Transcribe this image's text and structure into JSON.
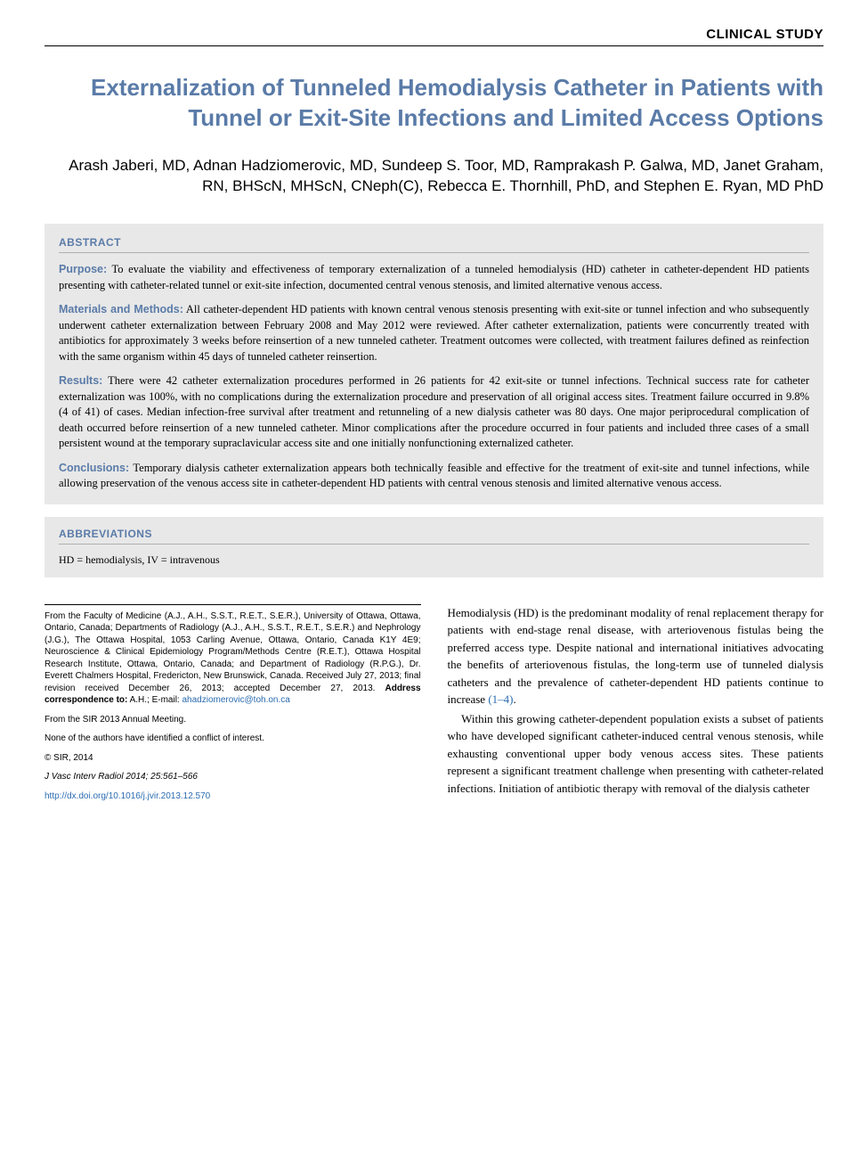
{
  "header": {
    "category": "CLINICAL STUDY"
  },
  "title": "Externalization of Tunneled Hemodialysis Catheter in Patients with Tunnel or Exit-Site Infections and Limited Access Options",
  "authors": "Arash Jaberi, MD, Adnan Hadziomerovic, MD, Sundeep S. Toor, MD, Ramprakash P. Galwa, MD, Janet Graham, RN, BHScN, MHScN, CNeph(C), Rebecca E. Thornhill, PhD, and Stephen E. Ryan, MD PhD",
  "abstract": {
    "heading": "ABSTRACT",
    "purpose_label": "Purpose:",
    "purpose_text": " To evaluate the viability and effectiveness of temporary externalization of a tunneled hemodialysis (HD) catheter in catheter-dependent HD patients presenting with catheter-related tunnel or exit-site infection, documented central venous stenosis, and limited alternative venous access.",
    "methods_label": "Materials and Methods:",
    "methods_text": " All catheter-dependent HD patients with known central venous stenosis presenting with exit-site or tunnel infection and who subsequently underwent catheter externalization between February 2008 and May 2012 were reviewed. After catheter externalization, patients were concurrently treated with antibiotics for approximately 3 weeks before reinsertion of a new tunneled catheter. Treatment outcomes were collected, with treatment failures defined as reinfection with the same organism within 45 days of tunneled catheter reinsertion.",
    "results_label": "Results:",
    "results_text": " There were 42 catheter externalization procedures performed in 26 patients for 42 exit-site or tunnel infections. Technical success rate for catheter externalization was 100%, with no complications during the externalization procedure and preservation of all original access sites. Treatment failure occurred in 9.8% (4 of 41) of cases. Median infection-free survival after treatment and retunneling of a new dialysis catheter was 80 days. One major periprocedural complication of death occurred before reinsertion of a new tunneled catheter. Minor complications after the procedure occurred in four patients and included three cases of a small persistent wound at the temporary supraclavicular access site and one initially nonfunctioning externalized catheter.",
    "conclusions_label": "Conclusions:",
    "conclusions_text": " Temporary dialysis catheter externalization appears both technically feasible and effective for the treatment of exit-site and tunnel infections, while allowing preservation of the venous access site in catheter-dependent HD patients with central venous stenosis and limited alternative venous access."
  },
  "abbreviations": {
    "heading": "ABBREVIATIONS",
    "text": "HD = hemodialysis, IV = intravenous"
  },
  "footnotes": {
    "affiliation": "From the Faculty of Medicine (A.J., A.H., S.S.T., R.E.T., S.E.R.), University of Ottawa, Ottawa, Ontario, Canada; Departments of Radiology (A.J., A.H., S.S.T., R.E.T., S.E.R.) and Nephrology (J.G.), The Ottawa Hospital, 1053 Carling Avenue, Ottawa, Ontario, Canada K1Y 4E9; Neuroscience & Clinical Epidemiology Program/Methods Centre (R.E.T.), Ottawa Hospital Research Institute, Ottawa, Ontario, Canada; and Department of Radiology (R.P.G.), Dr. Everett Chalmers Hospital, Fredericton, New Brunswick, Canada. Received July 27, 2013; final revision received December 26, 2013; accepted December 27, 2013. ",
    "correspondence_label": "Address correspondence to:",
    "correspondence_text": " A.H.; E-mail: ",
    "email": "ahadziomerovic@toh.on.ca",
    "meeting": "From the SIR 2013 Annual Meeting.",
    "conflict": "None of the authors have identified a conflict of interest.",
    "copyright": "© SIR, 2014",
    "citation": "J Vasc Interv Radiol 2014; 25:561–566",
    "doi": "http://dx.doi.org/10.1016/j.jvir.2013.12.570"
  },
  "body": {
    "p1_pre": "Hemodialysis (HD) is the predominant modality of renal replacement therapy for patients with end-stage renal disease, with arteriovenous fistulas being the preferred access type. Despite national and international initiatives advocating the benefits of arteriovenous fistulas, the long-term use of tunneled dialysis catheters and the prevalence of catheter-dependent HD patients continue to increase ",
    "p1_ref": "(1–4)",
    "p1_post": ".",
    "p2": "Within this growing catheter-dependent population exists a subset of patients who have developed significant catheter-induced central venous stenosis, while exhausting conventional upper body venous access sites. These patients represent a significant treatment challenge when presenting with catheter-related infections. Initiation of antibiotic therapy with removal of the dialysis catheter"
  }
}
